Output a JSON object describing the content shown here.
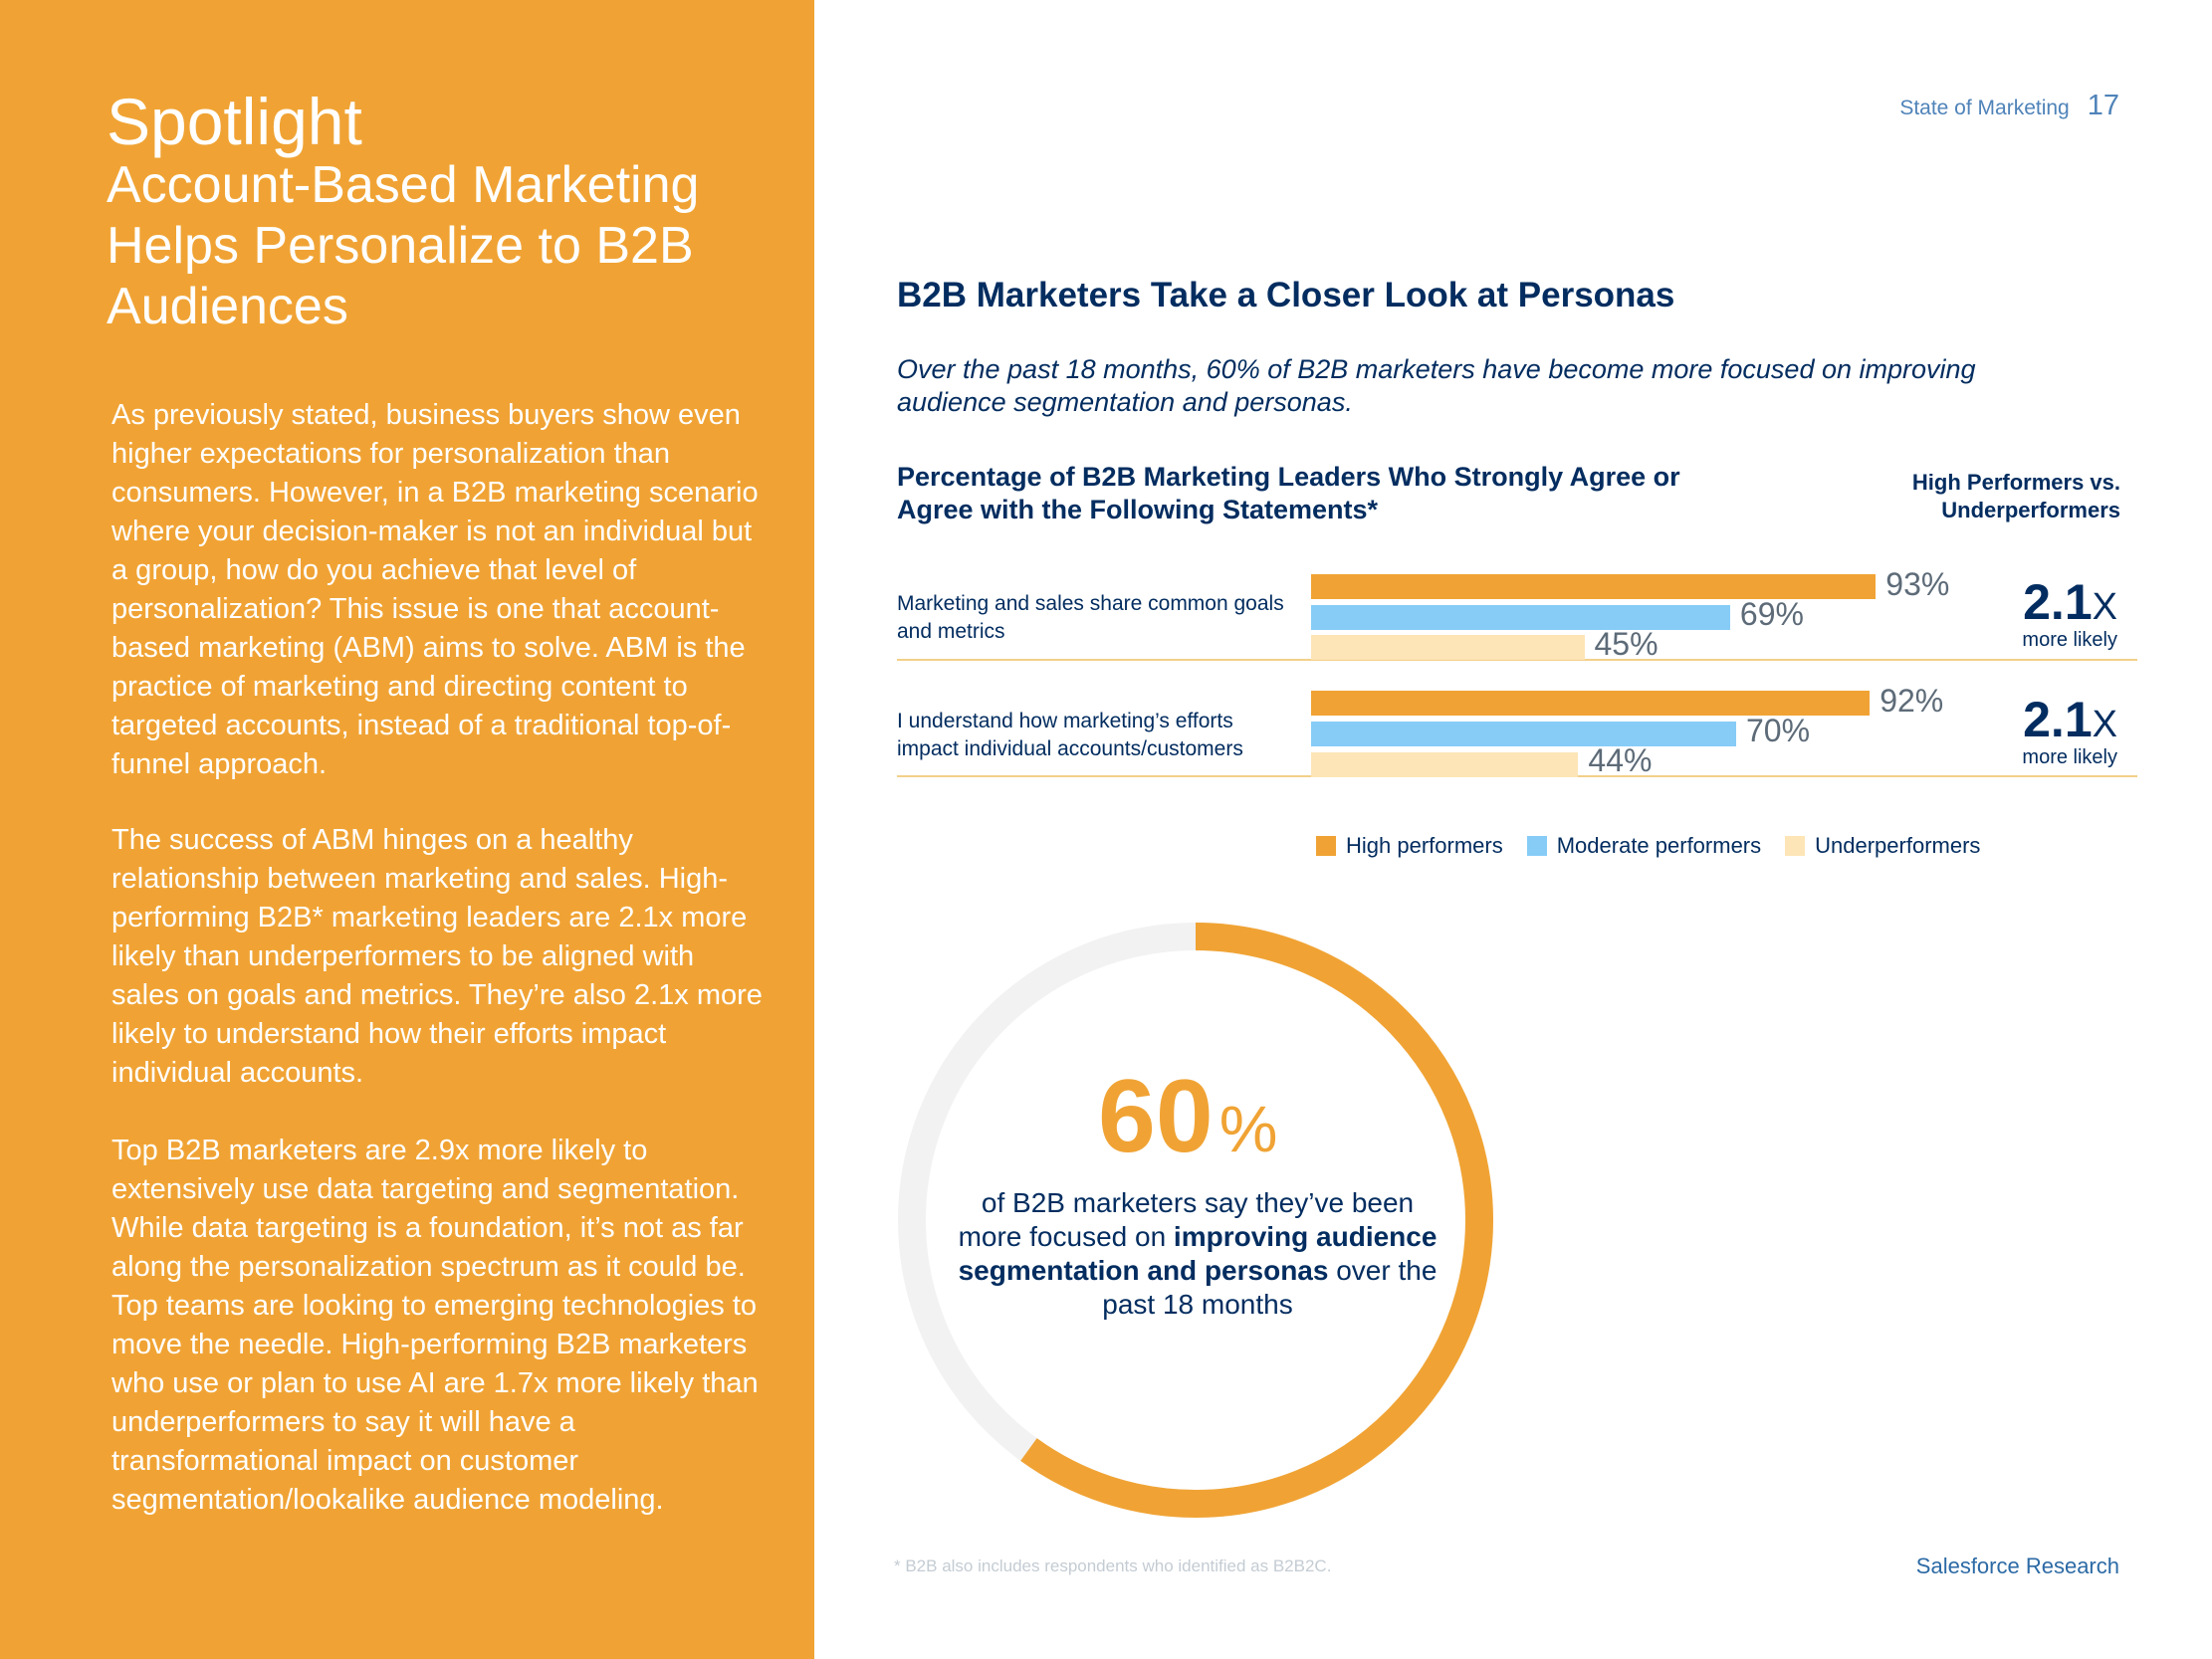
{
  "header": {
    "source": "State of Marketing",
    "page_number": "17"
  },
  "left": {
    "title": "Spotlight",
    "subtitle": "Account-Based Marketing Helps Personalize to B2B Audiences",
    "paragraphs": [
      "As previously stated, business buyers show even higher expectations for personalization than consumers. However, in a B2B marketing scenario where your decision-maker is not an individual but a group, how do you achieve that level of personalization? This issue is one that account-based marketing (ABM) aims to solve. ABM is the practice of marketing and directing content to targeted accounts, instead of a traditional top-of-funnel approach.",
      "The success of ABM hinges on a healthy relationship between marketing and sales. High-performing B2B* marketing leaders are 2.1x more likely than underperformers to be aligned with sales on goals and metrics. They’re also 2.1x more likely to understand how their efforts impact individual accounts.",
      "Top B2B marketers are 2.9x more likely to extensively use data targeting and segmentation. While data targeting is a foundation, it’s not as far along the personalization spectrum as it could be. Top teams are looking to emerging technologies to move the needle. High-performing B2B marketers who use or plan to use AI are 1.7x more likely than underperformers to say it will have a transformational impact on customer segmentation/lookalike audience modeling."
    ]
  },
  "main": {
    "heading": "B2B Marketers Take a Closer Look at Personas",
    "intro": "Over the past 18 months, 60% of B2B marketers have become more focused on improving audience segmentation and personas.",
    "chart_title": "Percentage of B2B Marketing Leaders Who Strongly Agree or Agree with the Following Statements*",
    "comparison_header": "High Performers vs. Underperformers",
    "multipliers": [
      {
        "value": "2.1",
        "suffix": "X",
        "caption": "more likely"
      },
      {
        "value": "2.1",
        "suffix": "X",
        "caption": "more likely"
      }
    ]
  },
  "colors": {
    "high": "#F0A334",
    "moderate": "#86CCF7",
    "under": "#FDE5B7",
    "navy": "#032D60",
    "track": "#F2F2F3"
  },
  "chart_data": [
    {
      "type": "bar",
      "orientation": "horizontal",
      "categories": [
        "Marketing and sales share common goals and metrics",
        "I understand how marketing’s efforts impact individual accounts/customers"
      ],
      "series": [
        {
          "name": "High performers",
          "values": [
            93,
            92
          ],
          "labels": [
            "93%",
            "92%"
          ]
        },
        {
          "name": "Moderate performers",
          "values": [
            69,
            70
          ],
          "labels": [
            "69%",
            "70%"
          ]
        },
        {
          "name": "Underperformers",
          "values": [
            45,
            44
          ],
          "labels": [
            "45%",
            "44%"
          ]
        }
      ],
      "xlim": [
        0,
        100
      ],
      "legend": "bottom"
    },
    {
      "type": "pie",
      "style": "donut",
      "value": 60,
      "value_text": "60",
      "value_unit": "%",
      "caption": "of B2B marketers say they’ve been more focused on improving audience segmentation and personas over the past 18 months",
      "caption_parts": {
        "pre": "of B2B marketers say they’ve been more focused on ",
        "bold": "improving audience segmentation and personas",
        "post": " over the past 18 months"
      }
    }
  ],
  "footer": {
    "footnote": "*  B2B also includes respondents who identified as B2B2C.",
    "brand": "Salesforce Research"
  }
}
